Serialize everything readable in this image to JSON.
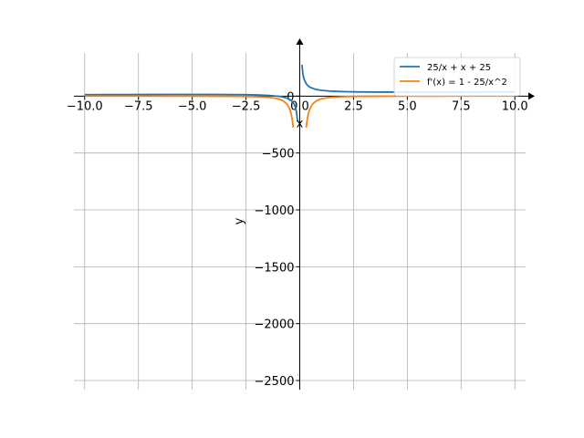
{
  "chart_data": {
    "type": "line",
    "xlabel": "x",
    "ylabel": "y",
    "xlim": [
      -10.5,
      10.5
    ],
    "ylim": [
      -2580,
      460
    ],
    "grid": true,
    "legend_position": "top-right",
    "x_ticks": [
      -10.0,
      -7.5,
      -5.0,
      -2.5,
      0.0,
      2.5,
      5.0,
      7.5,
      10.0
    ],
    "x_tick_labels": [
      "−10.0",
      "−7.5",
      "−5.0",
      "−2.5",
      "0.0",
      "2.5",
      "5.0",
      "7.5",
      "10.0"
    ],
    "y_ticks": [
      0,
      -500,
      -1000,
      -1500,
      -2000,
      -2500
    ],
    "y_tick_labels": [
      "0",
      "−500",
      "−1000",
      "−1500",
      "−2000",
      "−2500"
    ],
    "series": [
      {
        "name": "25/x + x + 25",
        "color": "#1f77b4",
        "x": [
          -10,
          -9,
          -8,
          -7,
          -6,
          -5,
          -4,
          -3,
          -2.5,
          -2,
          -1.5,
          -1,
          -0.8,
          -0.6,
          -0.5,
          -0.4,
          -0.3,
          -0.25,
          -0.2,
          -0.15,
          -0.1,
          0.1,
          0.15,
          0.2,
          0.3,
          0.4,
          0.5,
          0.75,
          1,
          1.5,
          2,
          2.5,
          3,
          4,
          5,
          6,
          7,
          8,
          9,
          10
        ],
        "y": [
          12.5,
          13.2,
          13.9,
          14.4,
          14.8,
          15,
          14.75,
          13.7,
          12.5,
          10.5,
          6.8,
          -1,
          -7.05,
          -17.3,
          -25.5,
          -37.9,
          -58.6,
          -75.25,
          -100.2,
          -141.8,
          -225.1,
          275.1,
          191.8,
          150.2,
          108.6,
          87.9,
          75.5,
          59.1,
          51,
          43.2,
          39.5,
          37.5,
          36.3,
          35.25,
          35,
          35.2,
          35.6,
          36.1,
          36.8,
          37.5
        ]
      },
      {
        "name": "f'(x) = 1 - 25/x^2",
        "color": "#ff7f0e",
        "x": [
          -10,
          -8,
          -6,
          -5,
          -4,
          -3,
          -2.5,
          -2,
          -1.5,
          -1.2,
          -1,
          -0.8,
          -0.6,
          -0.5,
          -0.45,
          -0.4,
          -0.35,
          -0.3,
          0.3,
          0.35,
          0.4,
          0.45,
          0.5,
          0.6,
          0.8,
          1,
          1.2,
          1.5,
          2,
          2.5,
          3,
          4,
          5,
          6,
          8,
          10
        ],
        "y": [
          0.75,
          0.61,
          0.31,
          0,
          -0.56,
          -1.78,
          -3,
          -5.25,
          -10.1,
          -16.4,
          -24,
          -38.1,
          -68.4,
          -99,
          -122.5,
          -155.25,
          -203.1,
          -276.8,
          -276.8,
          -203.1,
          -155.25,
          -122.5,
          -99,
          -68.4,
          -38.1,
          -24,
          -16.4,
          -10.1,
          -5.25,
          -3,
          -1.78,
          -0.56,
          0,
          0.31,
          0.61,
          0.75
        ]
      },
      {
        "name": "",
        "color": "#ff7f0e",
        "x": [
          -0.1,
          -0.07
        ],
        "y": [
          -2450,
          -2450
        ]
      }
    ]
  }
}
